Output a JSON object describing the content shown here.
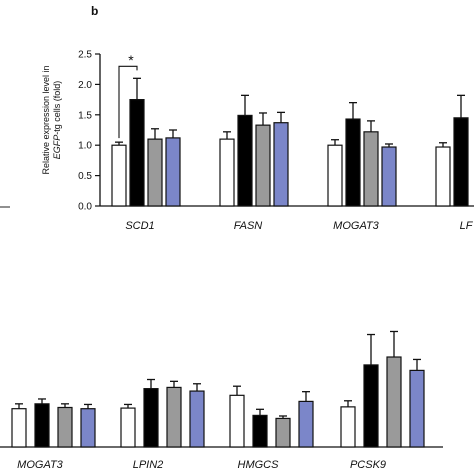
{
  "panel_label": "b",
  "colors": [
    "#ffffff",
    "#000000",
    "#9a9a9a",
    "#7b86c9"
  ],
  "chart_data": [
    {
      "type": "bar",
      "panel": "b",
      "ylabel_line1": "Relative expression level in",
      "ylabel_line2_italic": "EGFP",
      "ylabel_line2_rest": "-tg cells (fold)",
      "ylim": [
        0,
        2.5
      ],
      "yticks": [
        "0.0",
        "0.5",
        "1.0",
        "1.5",
        "2.0",
        "2.5"
      ],
      "categories": [
        "SCD1",
        "FASN",
        "MOGAT3",
        "LF"
      ],
      "series": [
        {
          "values": [
            1.0,
            1.1,
            1.0,
            0.97
          ],
          "errors": [
            0.05,
            0.12,
            0.09,
            0.07
          ]
        },
        {
          "values": [
            1.75,
            1.49,
            1.43,
            1.45
          ],
          "errors": [
            0.35,
            0.33,
            0.27,
            0.37
          ]
        },
        {
          "values": [
            1.1,
            1.33,
            1.22,
            null
          ],
          "errors": [
            0.17,
            0.2,
            0.18,
            null
          ]
        },
        {
          "values": [
            1.12,
            1.37,
            0.97,
            null
          ],
          "errors": [
            0.13,
            0.17,
            0.05,
            null
          ]
        }
      ],
      "annotation": "*"
    },
    {
      "type": "bar",
      "panel": "bottom",
      "categories": [
        "MOGAT3",
        "LPIN2",
        "HMGCS",
        "PCSK9"
      ],
      "series": [
        {
          "values": [
            0.63,
            0.64,
            0.85,
            0.66
          ],
          "errors": [
            0.08,
            0.06,
            0.15,
            0.1
          ]
        },
        {
          "values": [
            0.71,
            0.96,
            0.52,
            1.35
          ],
          "errors": [
            0.08,
            0.15,
            0.1,
            0.5
          ]
        },
        {
          "values": [
            0.65,
            0.98,
            0.47,
            1.48
          ],
          "errors": [
            0.06,
            0.1,
            0.04,
            0.42
          ]
        },
        {
          "values": [
            0.63,
            0.92,
            0.75,
            1.26
          ],
          "errors": [
            0.07,
            0.12,
            0.16,
            0.18
          ]
        }
      ]
    }
  ]
}
